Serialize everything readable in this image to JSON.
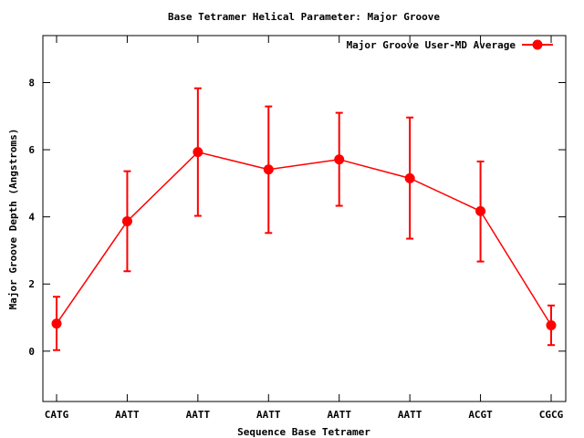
{
  "chart_data": {
    "type": "line",
    "title": "Base Tetramer Helical Parameter: Major Groove",
    "xlabel": "Sequence Base Tetramer",
    "ylabel": "Major Groove Depth (Angstroms)",
    "ylim": [
      -1.5,
      9.4
    ],
    "yticks": [
      0,
      2,
      4,
      6,
      8
    ],
    "grid": false,
    "legend_position": "top-right",
    "categories": [
      "CATG",
      "AATT",
      "AATT",
      "AATT",
      "AATT",
      "AATT",
      "ACGT",
      "CGCG"
    ],
    "series": [
      {
        "name": "Major Groove User-MD Average",
        "color": "#ff0000",
        "values": [
          0.82,
          3.87,
          5.93,
          5.41,
          5.71,
          5.15,
          4.17,
          0.77
        ],
        "error_low": [
          0.03,
          2.38,
          4.03,
          3.52,
          4.33,
          3.35,
          2.67,
          0.18
        ],
        "error_high": [
          1.62,
          5.36,
          7.83,
          7.29,
          7.1,
          6.96,
          5.65,
          1.36
        ]
      }
    ]
  }
}
